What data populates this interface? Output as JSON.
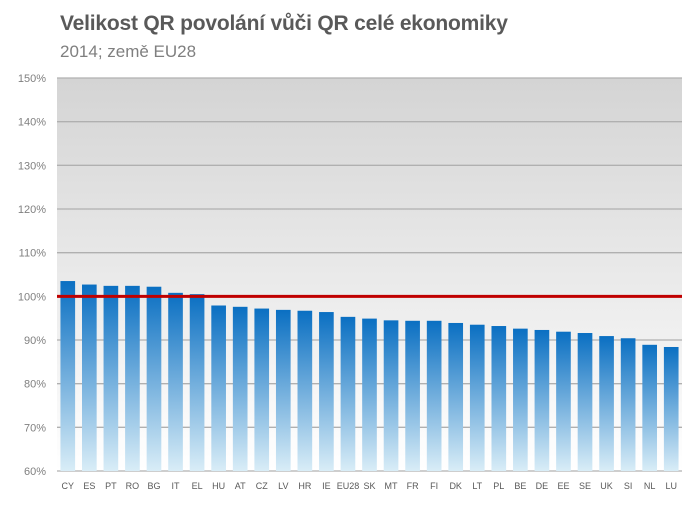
{
  "chart_data": {
    "type": "bar",
    "title": "Velikost QR povolání vůči QR celé ekonomiky",
    "subtitle": "2014; země EU28",
    "categories": [
      "CY",
      "ES",
      "PT",
      "RO",
      "BG",
      "IT",
      "EL",
      "HU",
      "AT",
      "CZ",
      "LV",
      "HR",
      "IE",
      "EU28",
      "SK",
      "MT",
      "FR",
      "FI",
      "DK",
      "LT",
      "PL",
      "BE",
      "DE",
      "EE",
      "SE",
      "UK",
      "SI",
      "NL",
      "LU"
    ],
    "values": [
      103.5,
      102.7,
      102.4,
      102.4,
      102.2,
      100.8,
      100.5,
      97.9,
      97.6,
      97.2,
      96.9,
      96.7,
      96.4,
      95.3,
      94.9,
      94.5,
      94.4,
      94.4,
      93.9,
      93.5,
      93.2,
      92.6,
      92.3,
      91.9,
      91.6,
      90.9,
      90.4,
      88.9,
      88.4
    ],
    "ylim": [
      60,
      150
    ],
    "yticks": [
      "60%",
      "70%",
      "80%",
      "90%",
      "100%",
      "110%",
      "120%",
      "130%",
      "140%",
      "150%"
    ],
    "reference_line": {
      "value": 100,
      "color": "#c00000"
    },
    "grid": true,
    "colors": {
      "bar_top": "#0a6fc2",
      "bar_bottom": "#d9edf7",
      "plot_bg_top": "#d4d4d4",
      "plot_bg_bottom": "#ffffff",
      "gridline": "#b0b0b0"
    }
  }
}
